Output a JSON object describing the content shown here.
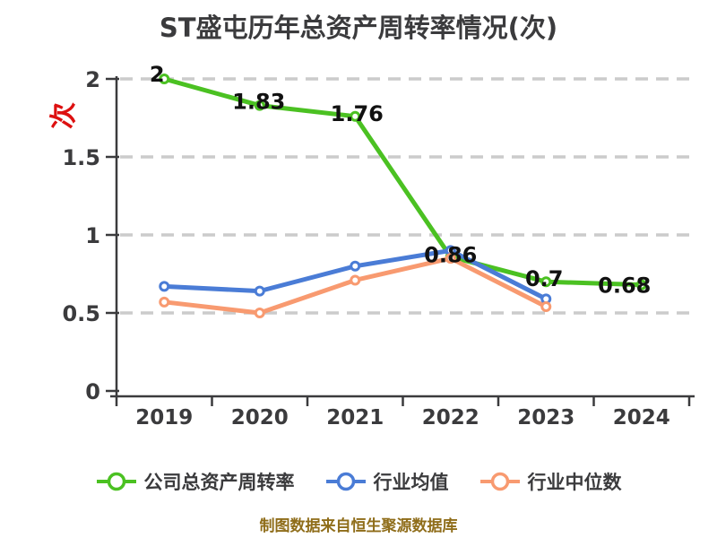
{
  "title": "ST盛屯历年总资产周转率情况(次)",
  "caption": "制图数据来自恒生聚源数据库",
  "colors": {
    "title": "#3b3b3d",
    "axis": "#3b3b3d",
    "grid": "#cbcbcb",
    "point_label": "#111111",
    "y_unit_label": "#dd1010",
    "caption": "#8f6d1a",
    "marker_fill": "#ffffff"
  },
  "chart_data": {
    "type": "line",
    "title": "ST盛屯历年总资产周转率情况(次)",
    "ylabel": "次",
    "xlabel": "",
    "categories": [
      "2019",
      "2020",
      "2021",
      "2022",
      "2023",
      "2024"
    ],
    "ylim": [
      0,
      2
    ],
    "yticks": [
      0,
      0.5,
      1,
      1.5,
      2
    ],
    "ytick_labels": [
      "0",
      "0.5",
      "1",
      "1.5",
      "2"
    ],
    "grid": "horizontal-dashed",
    "legend_position": "bottom",
    "series": [
      {
        "name": "公司总资产周转率",
        "color": "#4bc122",
        "values": [
          2,
          1.83,
          1.76,
          0.86,
          0.7,
          0.68
        ],
        "labels": [
          "2",
          "1.83",
          "1.76",
          "0.86",
          "0.7",
          "0.68"
        ]
      },
      {
        "name": "行业均值",
        "color": "#4a7cd6",
        "values": [
          0.67,
          0.64,
          0.8,
          0.9,
          0.59,
          null
        ],
        "labels": []
      },
      {
        "name": "行业中位数",
        "color": "#f89a70",
        "values": [
          0.57,
          0.5,
          0.71,
          0.85,
          0.54,
          null
        ],
        "labels": []
      }
    ]
  }
}
